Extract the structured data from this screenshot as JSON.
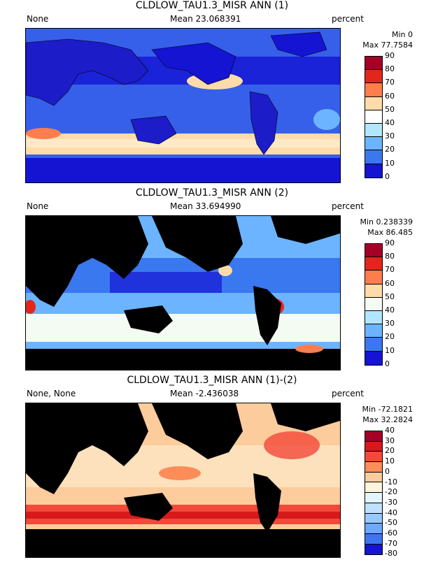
{
  "panels": [
    {
      "title": "CLDLOW_TAU1.3_MISR ANN (1)",
      "left_label": "None",
      "mean": "Mean 23.068391",
      "units": "percent",
      "min": "Min 0",
      "max": "Max 77.7584",
      "colorbar": {
        "ticks": [
          "90",
          "80",
          "70",
          "60",
          "50",
          "40",
          "30",
          "20",
          "10",
          "0"
        ],
        "colors": [
          "#a50026",
          "#e3261c",
          "#fc7e4f",
          "#fddcaa",
          "#ffffff",
          "#b2e6fc",
          "#6cb4ff",
          "#3a78f0",
          "#1414d2"
        ]
      },
      "land_color": "#1c1cc8",
      "ocean_color": "#3660ea"
    },
    {
      "title": "CLDLOW_TAU1.3_MISR ANN (2)",
      "left_label": "None",
      "mean": "Mean 33.694990",
      "units": "percent",
      "min": "Min 0.238339",
      "max": "Max 86.485",
      "colorbar": {
        "ticks": [
          "90",
          "80",
          "70",
          "60",
          "50",
          "40",
          "30",
          "20",
          "10",
          "0"
        ],
        "colors": [
          "#a50026",
          "#e3261c",
          "#fc7e4f",
          "#fddcaa",
          "#f4fbf2",
          "#b2e6fc",
          "#6cb4ff",
          "#3a78f0",
          "#1414d2"
        ]
      },
      "land_color": "#000000",
      "ocean_color": "#3a78f0"
    },
    {
      "title": "CLDLOW_TAU1.3_MISR ANN (1)-(2)",
      "left_label": "None, None",
      "mean": "Mean -2.436038",
      "units": "percent",
      "min": "Min -72.1821",
      "max": "Max 32.2824",
      "colorbar": {
        "ticks": [
          "40",
          "30",
          "20",
          "10",
          "0",
          "-10",
          "-20",
          "-30",
          "-40",
          "-50",
          "-60",
          "-70",
          "-80"
        ],
        "colors": [
          "#a50026",
          "#d7191c",
          "#f2493a",
          "#fc8d59",
          "#fdcc9c",
          "#fff4dc",
          "#e4f4ff",
          "#bfe0ff",
          "#96caff",
          "#6ea8ff",
          "#3f74f0",
          "#1414d2"
        ]
      },
      "land_color": "#000000",
      "ocean_color": "#fde1bd"
    }
  ]
}
